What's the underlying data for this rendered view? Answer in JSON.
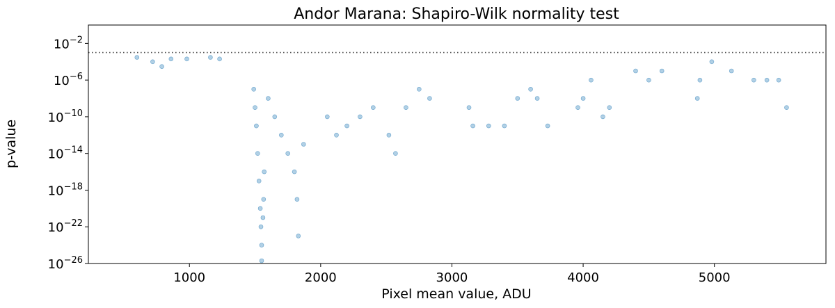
{
  "chart_data": {
    "type": "scatter",
    "title": "Andor Marana: Shapiro-Wilk normality test",
    "xlabel": "Pixel mean value, ADU",
    "ylabel": "p-value",
    "xlim": [
      230,
      5850
    ],
    "ylim": [
      1e-26,
      1
    ],
    "yscale": "log",
    "x_ticks": [
      1000,
      2000,
      3000,
      4000,
      5000
    ],
    "y_ticks": [
      {
        "value": 0.01,
        "base": "10",
        "exp": "−2"
      },
      {
        "value": 1e-06,
        "base": "10",
        "exp": "−6"
      },
      {
        "value": 1e-10,
        "base": "10",
        "exp": "−10"
      },
      {
        "value": 1e-14,
        "base": "10",
        "exp": "−14"
      },
      {
        "value": 1e-18,
        "base": "10",
        "exp": "−18"
      },
      {
        "value": 1e-22,
        "base": "10",
        "exp": "−22"
      },
      {
        "value": 1e-26,
        "base": "10",
        "exp": "−26"
      }
    ],
    "threshold": 0.001,
    "grid": false,
    "marker_color": "#1f77b4",
    "marker_alpha": 0.35,
    "points": [
      [
        600,
        0.0003
      ],
      [
        720,
        0.0001
      ],
      [
        790,
        3e-05
      ],
      [
        860,
        0.0002
      ],
      [
        980,
        0.0002
      ],
      [
        1160,
        0.0003
      ],
      [
        1230,
        0.0002
      ],
      [
        1490,
        1e-07
      ],
      [
        1500,
        1e-09
      ],
      [
        1510,
        1e-11
      ],
      [
        1520,
        1e-14
      ],
      [
        1530,
        1e-17
      ],
      [
        1540,
        1e-20
      ],
      [
        1545,
        1e-22
      ],
      [
        1550,
        1e-24
      ],
      [
        1550,
        2e-26
      ],
      [
        1560,
        1e-21
      ],
      [
        1565,
        1e-19
      ],
      [
        1570,
        1e-16
      ],
      [
        1600,
        1e-08
      ],
      [
        1650,
        1e-10
      ],
      [
        1700,
        1e-12
      ],
      [
        1750,
        1e-14
      ],
      [
        1800,
        1e-16
      ],
      [
        1820,
        1e-19
      ],
      [
        1830,
        1e-23
      ],
      [
        1870,
        1e-13
      ],
      [
        2050,
        1e-10
      ],
      [
        2120,
        1e-12
      ],
      [
        2200,
        1e-11
      ],
      [
        2300,
        1e-10
      ],
      [
        2400,
        1e-09
      ],
      [
        2520,
        1e-12
      ],
      [
        2570,
        1e-14
      ],
      [
        2650,
        1e-09
      ],
      [
        2750,
        1e-07
      ],
      [
        2830,
        1e-08
      ],
      [
        3130,
        1e-09
      ],
      [
        3160,
        1e-11
      ],
      [
        3280,
        1e-11
      ],
      [
        3400,
        1e-11
      ],
      [
        3500,
        1e-08
      ],
      [
        3600,
        1e-07
      ],
      [
        3650,
        1e-08
      ],
      [
        3730,
        1e-11
      ],
      [
        3960,
        1e-09
      ],
      [
        4000,
        1e-08
      ],
      [
        4060,
        1e-06
      ],
      [
        4150,
        1e-10
      ],
      [
        4200,
        1e-09
      ],
      [
        4400,
        1e-05
      ],
      [
        4500,
        1e-06
      ],
      [
        4600,
        1e-05
      ],
      [
        4870,
        1e-08
      ],
      [
        4890,
        1e-06
      ],
      [
        4980,
        0.0001
      ],
      [
        5130,
        1e-05
      ],
      [
        5300,
        1e-06
      ],
      [
        5400,
        1e-06
      ],
      [
        5490,
        1e-06
      ],
      [
        5550,
        1e-09
      ]
    ]
  }
}
